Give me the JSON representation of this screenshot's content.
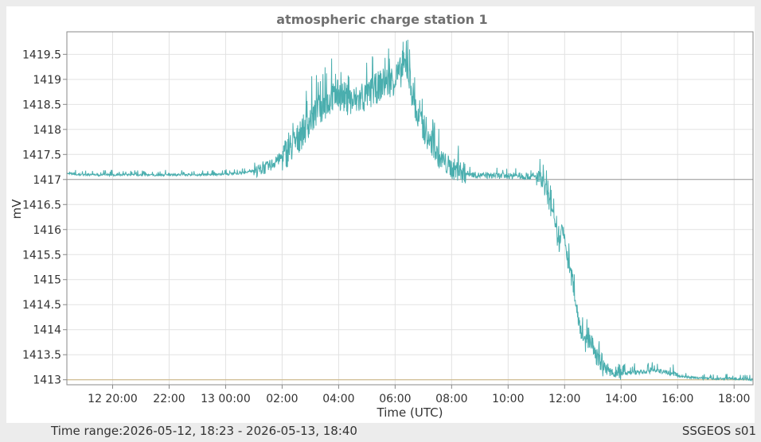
{
  "footer": {
    "time_range_label": "Time range:",
    "time_range_value": "2026-05-12, 18:23 - 2026-05-13, 18:40",
    "station_code": "SSGEOS s01"
  },
  "colors": {
    "series": "#4aaeae",
    "baseline": "#c9b07a",
    "reference": "#999999",
    "grid": "#e2e2e2",
    "axis": "#888888",
    "title": "#707070"
  },
  "chart_data": {
    "type": "line",
    "title": "atmospheric charge station 1",
    "xlabel": "Time (UTC)",
    "ylabel": "mV",
    "x_unit": "hours since 2026-05-12 00:00 UTC",
    "xlim": [
      18.38,
      42.67
    ],
    "ylim": [
      1412.9,
      1419.95
    ],
    "x_ticks": [
      {
        "x": 20,
        "label": "12 20:00"
      },
      {
        "x": 22,
        "label": "22:00"
      },
      {
        "x": 24,
        "label": "13 00:00"
      },
      {
        "x": 26,
        "label": "02:00"
      },
      {
        "x": 28,
        "label": "04:00"
      },
      {
        "x": 30,
        "label": "06:00"
      },
      {
        "x": 32,
        "label": "08:00"
      },
      {
        "x": 34,
        "label": "10:00"
      },
      {
        "x": 36,
        "label": "12:00"
      },
      {
        "x": 38,
        "label": "14:00"
      },
      {
        "x": 40,
        "label": "16:00"
      },
      {
        "x": 42,
        "label": "18:00"
      }
    ],
    "y_ticks": [
      {
        "y": 1413,
        "label": "1413"
      },
      {
        "y": 1413.5,
        "label": "1413.5"
      },
      {
        "y": 1414,
        "label": "1414"
      },
      {
        "y": 1414.5,
        "label": "1414.5"
      },
      {
        "y": 1415,
        "label": "1415"
      },
      {
        "y": 1415.5,
        "label": "1415.5"
      },
      {
        "y": 1416,
        "label": "1416"
      },
      {
        "y": 1416.5,
        "label": "1416.5"
      },
      {
        "y": 1417,
        "label": "1417"
      },
      {
        "y": 1417.5,
        "label": "1417.5"
      },
      {
        "y": 1418,
        "label": "1418"
      },
      {
        "y": 1418.5,
        "label": "1418.5"
      },
      {
        "y": 1419,
        "label": "1419"
      },
      {
        "y": 1419.5,
        "label": "1419.5"
      }
    ],
    "reference_lines": [
      {
        "y": 1417,
        "color": "#999999"
      },
      {
        "y": 1413,
        "color": "#c9b07a"
      }
    ],
    "grid": true,
    "legend": "none",
    "series": [
      {
        "color": "#4aaeae",
        "points": [
          [
            18.38,
            1417.1
          ],
          [
            19.0,
            1417.07
          ],
          [
            20.0,
            1417.07
          ],
          [
            21.0,
            1417.07
          ],
          [
            22.0,
            1417.07
          ],
          [
            23.0,
            1417.07
          ],
          [
            24.0,
            1417.08
          ],
          [
            24.5,
            1417.1
          ],
          [
            25.0,
            1417.15
          ],
          [
            25.5,
            1417.25
          ],
          [
            26.0,
            1417.45
          ],
          [
            26.5,
            1417.75
          ],
          [
            27.0,
            1418.2
          ],
          [
            27.5,
            1418.5
          ],
          [
            28.0,
            1418.7
          ],
          [
            28.5,
            1418.55
          ],
          [
            29.0,
            1418.65
          ],
          [
            29.5,
            1418.9
          ],
          [
            30.0,
            1419.0
          ],
          [
            30.2,
            1419.15
          ],
          [
            30.4,
            1419.3
          ],
          [
            30.55,
            1418.9
          ],
          [
            30.8,
            1418.2
          ],
          [
            31.2,
            1417.75
          ],
          [
            31.6,
            1417.4
          ],
          [
            32.0,
            1417.22
          ],
          [
            32.5,
            1417.12
          ],
          [
            33.0,
            1417.08
          ],
          [
            34.0,
            1417.07
          ],
          [
            35.0,
            1417.05
          ],
          [
            35.2,
            1416.95
          ],
          [
            35.4,
            1416.65
          ],
          [
            35.6,
            1416.2
          ],
          [
            35.7,
            1415.9
          ],
          [
            35.8,
            1415.65
          ],
          [
            35.9,
            1415.95
          ],
          [
            36.0,
            1415.85
          ],
          [
            36.1,
            1415.4
          ],
          [
            36.3,
            1414.9
          ],
          [
            36.5,
            1414.2
          ],
          [
            36.7,
            1413.7
          ],
          [
            36.9,
            1413.8
          ],
          [
            37.1,
            1413.5
          ],
          [
            37.4,
            1413.2
          ],
          [
            37.8,
            1413.1
          ],
          [
            38.0,
            1413.08
          ],
          [
            38.5,
            1413.1
          ],
          [
            39.0,
            1413.12
          ],
          [
            39.5,
            1413.12
          ],
          [
            40.0,
            1413.05
          ],
          [
            41.0,
            1413.0
          ],
          [
            42.0,
            1413.0
          ],
          [
            42.67,
            1412.98
          ]
        ]
      }
    ]
  }
}
